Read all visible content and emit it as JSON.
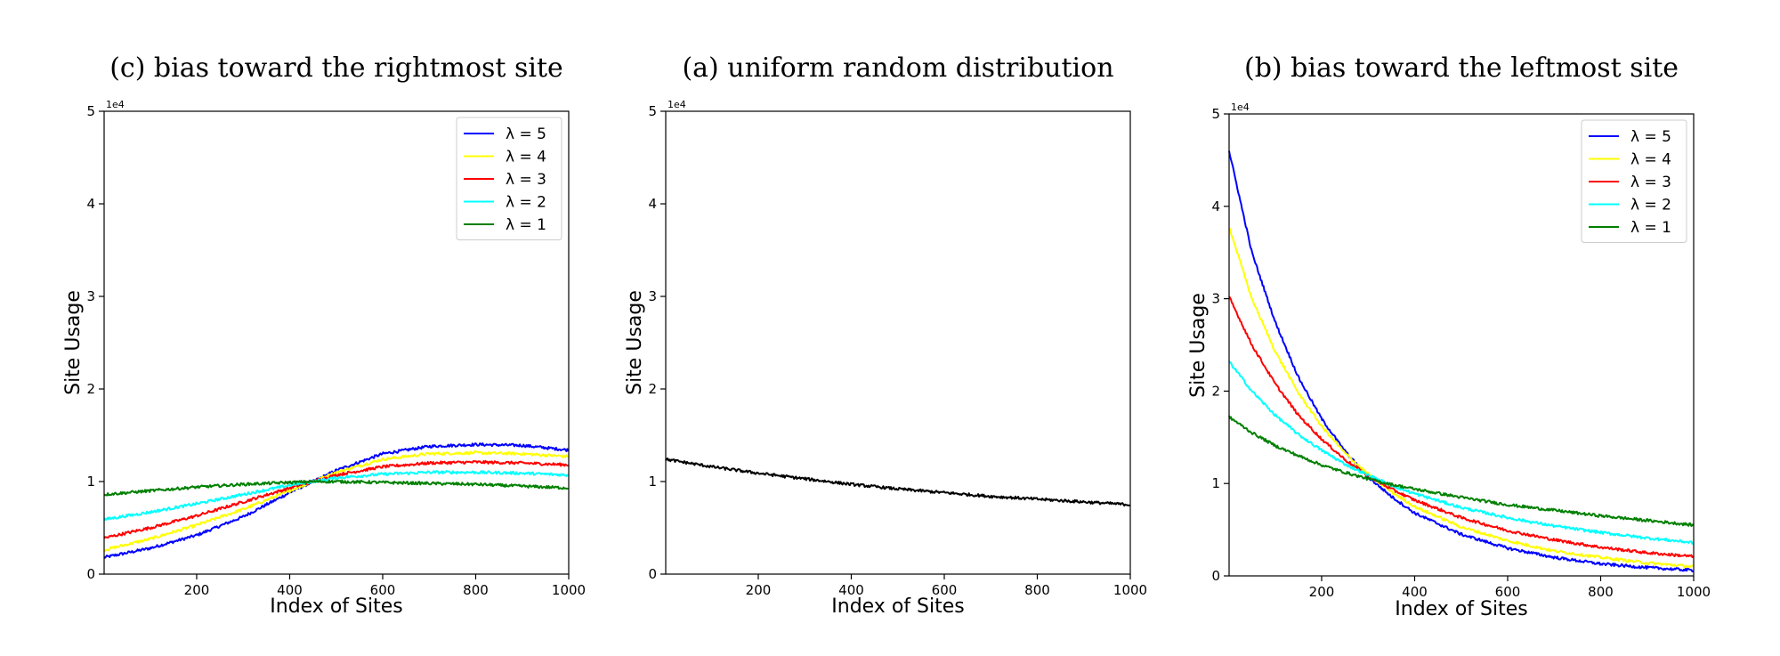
{
  "chart_data": [
    {
      "type": "line",
      "title": "(c) bias toward the rightmost site",
      "xlabel": "Index of Sites",
      "ylabel": "Site Usage",
      "y_offset_label": "1e4",
      "xlim": [
        1,
        1000
      ],
      "ylim": [
        0,
        5
      ],
      "xticks": [
        200,
        400,
        600,
        800,
        1000
      ],
      "yticks": [
        0,
        1,
        2,
        3,
        4,
        5
      ],
      "grid": false,
      "legend_position": "top-right",
      "x": [
        1,
        100,
        200,
        300,
        400,
        450,
        500,
        600,
        700,
        800,
        900,
        1000
      ],
      "series": [
        {
          "name": "λ = 5",
          "color": "#0000ff",
          "values": [
            0.18,
            0.28,
            0.42,
            0.62,
            0.88,
            1.0,
            1.12,
            1.3,
            1.38,
            1.4,
            1.39,
            1.34
          ]
        },
        {
          "name": "λ = 4",
          "color": "#ffff00",
          "values": [
            0.26,
            0.38,
            0.53,
            0.7,
            0.9,
            1.0,
            1.1,
            1.24,
            1.3,
            1.31,
            1.3,
            1.27
          ]
        },
        {
          "name": "λ = 3",
          "color": "#ff0000",
          "values": [
            0.39,
            0.5,
            0.63,
            0.78,
            0.93,
            1.0,
            1.07,
            1.16,
            1.2,
            1.21,
            1.2,
            1.18
          ]
        },
        {
          "name": "λ = 2",
          "color": "#00ffff",
          "values": [
            0.59,
            0.67,
            0.76,
            0.86,
            0.96,
            1.0,
            1.04,
            1.08,
            1.1,
            1.1,
            1.09,
            1.07
          ]
        },
        {
          "name": "λ = 1",
          "color": "#008000",
          "values": [
            0.86,
            0.9,
            0.94,
            0.97,
            0.99,
            1.0,
            1.0,
            0.99,
            0.98,
            0.97,
            0.95,
            0.93
          ]
        }
      ]
    },
    {
      "type": "line",
      "title": "(a) uniform random distribution",
      "xlabel": "Index of Sites",
      "ylabel": "Site Usage",
      "y_offset_label": "1e4",
      "xlim": [
        1,
        1000
      ],
      "ylim": [
        0,
        5
      ],
      "xticks": [
        200,
        400,
        600,
        800,
        1000
      ],
      "yticks": [
        0,
        1,
        2,
        3,
        4,
        5
      ],
      "grid": false,
      "legend_position": "none",
      "x": [
        1,
        100,
        200,
        300,
        400,
        500,
        600,
        700,
        800,
        900,
        1000
      ],
      "series": [
        {
          "color": "#000000",
          "values": [
            1.24,
            1.16,
            1.09,
            1.03,
            0.97,
            0.92,
            0.88,
            0.84,
            0.81,
            0.78,
            0.75
          ]
        }
      ]
    },
    {
      "type": "line",
      "title": "(b) bias toward the leftmost site",
      "xlabel": "Index of Sites",
      "ylabel": "Site Usage",
      "y_offset_label": "1e4",
      "xlim": [
        1,
        1000
      ],
      "ylim": [
        0,
        5
      ],
      "xticks": [
        200,
        400,
        600,
        800,
        1000
      ],
      "yticks": [
        0,
        1,
        2,
        3,
        4,
        5
      ],
      "grid": false,
      "legend_position": "top-right",
      "x": [
        1,
        50,
        100,
        150,
        200,
        250,
        300,
        350,
        400,
        500,
        600,
        700,
        800,
        900,
        1000
      ],
      "series": [
        {
          "name": "λ = 5",
          "color": "#0000ff",
          "values": [
            4.6,
            3.5,
            2.75,
            2.15,
            1.7,
            1.35,
            1.07,
            0.86,
            0.68,
            0.45,
            0.3,
            0.2,
            0.13,
            0.09,
            0.06
          ]
        },
        {
          "name": "λ = 4",
          "color": "#ffff00",
          "values": [
            3.78,
            3.0,
            2.43,
            1.98,
            1.62,
            1.33,
            1.1,
            0.91,
            0.75,
            0.53,
            0.38,
            0.27,
            0.2,
            0.14,
            0.1
          ]
        },
        {
          "name": "λ = 3",
          "color": "#ff0000",
          "values": [
            3.02,
            2.5,
            2.08,
            1.74,
            1.48,
            1.26,
            1.08,
            0.94,
            0.82,
            0.63,
            0.49,
            0.39,
            0.31,
            0.25,
            0.21
          ]
        },
        {
          "name": "λ = 2",
          "color": "#00ffff",
          "values": [
            2.32,
            2.0,
            1.74,
            1.53,
            1.36,
            1.21,
            1.09,
            0.98,
            0.89,
            0.74,
            0.63,
            0.54,
            0.47,
            0.41,
            0.36
          ]
        },
        {
          "name": "λ = 1",
          "color": "#008000",
          "values": [
            1.72,
            1.55,
            1.41,
            1.3,
            1.2,
            1.12,
            1.05,
            0.99,
            0.94,
            0.85,
            0.77,
            0.71,
            0.65,
            0.6,
            0.55
          ]
        }
      ]
    }
  ]
}
